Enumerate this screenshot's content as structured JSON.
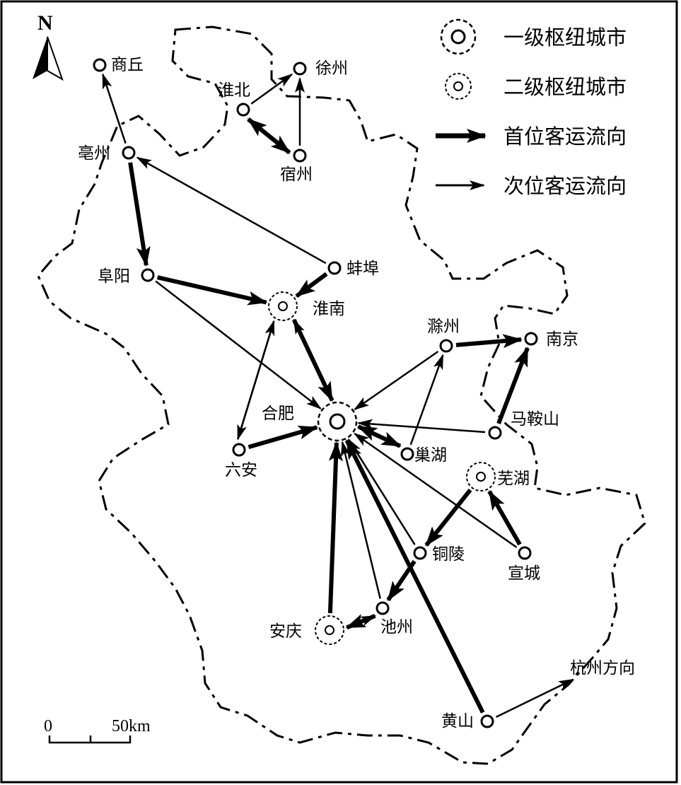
{
  "map": {
    "north_label": "N",
    "scale": {
      "zero_label": "0",
      "distance_label": "50km"
    },
    "legend": [
      {
        "key": "hub1",
        "label": "一级枢纽城市"
      },
      {
        "key": "hub2",
        "label": "二级枢纽城市"
      },
      {
        "key": "primary",
        "label": "首位客运流向"
      },
      {
        "key": "secondary",
        "label": "次位客运流向"
      }
    ],
    "cities": [
      {
        "id": "shangqiu",
        "name": "商丘",
        "level": "ordinary"
      },
      {
        "id": "xuzhou",
        "name": "徐州",
        "level": "ordinary"
      },
      {
        "id": "huaibei",
        "name": "淮北",
        "level": "ordinary"
      },
      {
        "id": "suzhou",
        "name": "宿州",
        "level": "ordinary"
      },
      {
        "id": "bozhou",
        "name": "亳州",
        "level": "ordinary"
      },
      {
        "id": "bengbu",
        "name": "蚌埠",
        "level": "ordinary"
      },
      {
        "id": "fuyang",
        "name": "阜阳",
        "level": "ordinary"
      },
      {
        "id": "huainan",
        "name": "淮南",
        "level": "hub2"
      },
      {
        "id": "chuzhou",
        "name": "滁州",
        "level": "ordinary"
      },
      {
        "id": "nanjing",
        "name": "南京",
        "level": "ordinary"
      },
      {
        "id": "hefei",
        "name": "合肥",
        "level": "hub1"
      },
      {
        "id": "maanshan",
        "name": "马鞍山",
        "level": "ordinary"
      },
      {
        "id": "luan",
        "name": "六安",
        "level": "ordinary"
      },
      {
        "id": "chaohu",
        "name": "巢湖",
        "level": "ordinary"
      },
      {
        "id": "wuhu",
        "name": "芜湖",
        "level": "hub2"
      },
      {
        "id": "tongling",
        "name": "铜陵",
        "level": "ordinary"
      },
      {
        "id": "xuancheng",
        "name": "宣城",
        "level": "ordinary"
      },
      {
        "id": "chizhou",
        "name": "池州",
        "level": "ordinary"
      },
      {
        "id": "anqing",
        "name": "安庆",
        "level": "hub2"
      },
      {
        "id": "huangshan",
        "name": "黄山",
        "level": "ordinary"
      },
      {
        "id": "hangzhou",
        "name": "杭州方向",
        "level": "direction"
      }
    ],
    "flows": [
      {
        "from": "bozhou",
        "to": "shangqiu",
        "type": "secondary"
      },
      {
        "from": "bozhou",
        "to": "fuyang",
        "type": "primary"
      },
      {
        "from": "huaibei",
        "to": "xuzhou",
        "type": "secondary"
      },
      {
        "from": "suzhou",
        "to": "xuzhou",
        "type": "secondary"
      },
      {
        "from": "huaibei",
        "to": "suzhou",
        "type": "primary"
      },
      {
        "from": "suzhou",
        "to": "huaibei",
        "type": "primary"
      },
      {
        "from": "bengbu",
        "to": "bozhou",
        "type": "secondary"
      },
      {
        "from": "bengbu",
        "to": "huainan",
        "type": "primary"
      },
      {
        "from": "fuyang",
        "to": "huainan",
        "type": "primary"
      },
      {
        "from": "fuyang",
        "to": "hefei",
        "type": "secondary"
      },
      {
        "from": "huainan",
        "to": "hefei",
        "type": "primary"
      },
      {
        "from": "hefei",
        "to": "huainan",
        "type": "secondary"
      },
      {
        "from": "huainan",
        "to": "luan",
        "type": "secondary"
      },
      {
        "from": "luan",
        "to": "huainan",
        "type": "secondary"
      },
      {
        "from": "luan",
        "to": "hefei",
        "type": "primary"
      },
      {
        "from": "chuzhou",
        "to": "nanjing",
        "type": "primary"
      },
      {
        "from": "chuzhou",
        "to": "hefei",
        "type": "secondary"
      },
      {
        "from": "chaohu",
        "to": "chuzhou",
        "type": "secondary"
      },
      {
        "from": "maanshan",
        "to": "nanjing",
        "type": "primary"
      },
      {
        "from": "maanshan",
        "to": "hefei",
        "type": "secondary"
      },
      {
        "from": "hefei",
        "to": "chaohu",
        "type": "primary"
      },
      {
        "from": "chaohu",
        "to": "hefei",
        "type": "primary"
      },
      {
        "from": "xuancheng",
        "to": "wuhu",
        "type": "primary"
      },
      {
        "from": "xuancheng",
        "to": "hefei",
        "type": "secondary"
      },
      {
        "from": "wuhu",
        "to": "tongling",
        "type": "primary"
      },
      {
        "from": "tongling",
        "to": "chizhou",
        "type": "primary"
      },
      {
        "from": "tongling",
        "to": "hefei",
        "type": "secondary"
      },
      {
        "from": "chizhou",
        "to": "hefei",
        "type": "secondary"
      },
      {
        "from": "anqing",
        "to": "hefei",
        "type": "primary"
      },
      {
        "from": "anqing",
        "to": "chizhou",
        "type": "secondary"
      },
      {
        "from": "chizhou",
        "to": "anqing",
        "type": "primary"
      },
      {
        "from": "huangshan",
        "to": "hefei",
        "type": "primary"
      },
      {
        "from": "huangshan",
        "to": "hangzhou",
        "type": "secondary"
      }
    ]
  }
}
